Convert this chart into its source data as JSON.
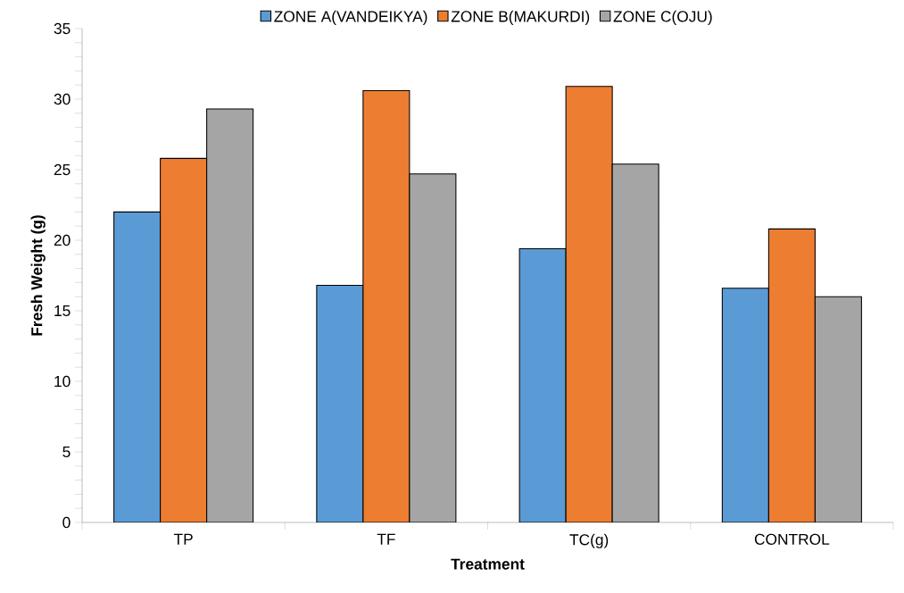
{
  "chart_data": {
    "type": "bar",
    "xlabel": "Treatment",
    "ylabel": "Fresh Weight (g)",
    "categories": [
      "TP",
      "TF",
      "TC(g)",
      "CONTROL"
    ],
    "series": [
      {
        "name": "ZONE A(VANDEIKYA)",
        "color": "#5b9bd5",
        "values": [
          22.0,
          16.8,
          19.4,
          16.6
        ]
      },
      {
        "name": "ZONE B(MAKURDI)",
        "color": "#ed7d31",
        "values": [
          25.8,
          30.6,
          30.9,
          20.8
        ]
      },
      {
        "name": "ZONE C(OJU)",
        "color": "#a5a5a5",
        "values": [
          29.3,
          24.7,
          25.4,
          16.0
        ]
      }
    ],
    "ylim": [
      0,
      35
    ],
    "yticks": [
      0,
      5,
      10,
      15,
      20,
      25,
      30,
      35
    ],
    "grid": false,
    "legend": "top"
  }
}
